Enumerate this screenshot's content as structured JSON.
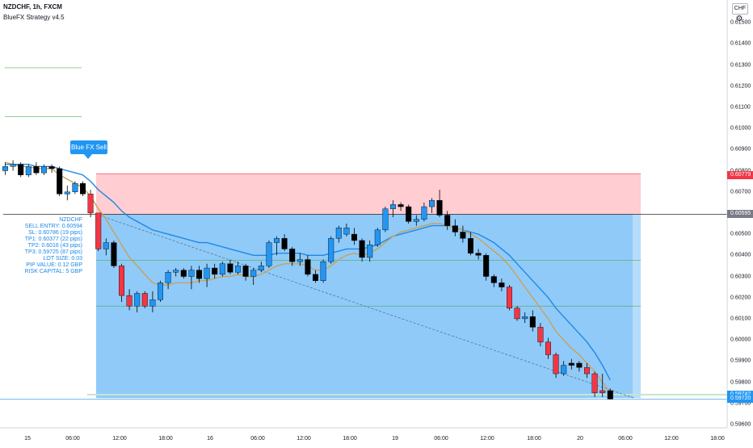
{
  "header": {
    "title": "NZDCHF, 1h, FXCM",
    "subtitle": "BlueFX Strategy v4.5"
  },
  "currency_badge": "CHF",
  "settings_icon": "gear-icon",
  "signal_label": "Blue FX Sell",
  "info": {
    "lines": [
      "NZDCHF",
      "SELL ENTRY: 0.60594",
      "SL: 0.60786 (19 pips)",
      "TP1: 0.60377 (22 pips)",
      "TP2: 0.6016 (43 pips)",
      "TP3: 0.59725 (87 pips)",
      "LOT SIZE: 0.03",
      "PIP VALUE: 0.12 GBP",
      "RISK CAPITAL: 5 GBP"
    ]
  },
  "price_axis": [
    "0.61500",
    "0.61400",
    "0.61300",
    "0.61200",
    "0.61100",
    "0.61000",
    "0.60900",
    "0.60800",
    "0.60700",
    "0.60600",
    "0.60500",
    "0.60400",
    "0.60300",
    "0.60200",
    "0.60100",
    "0.60000",
    "0.59900",
    "0.59800",
    "0.59700",
    "0.59600"
  ],
  "time_axis": [
    "15",
    "06:00",
    "12:00",
    "18:00",
    "16",
    "06:00",
    "12:00",
    "18:00",
    "19",
    "06:00",
    "12:00",
    "18:00",
    "20",
    "06:00",
    "12:00",
    "18:00"
  ],
  "price_tags": [
    {
      "text": "0.60779",
      "color": "#f23645"
    },
    {
      "text": "0.60595",
      "color": "#787b86"
    },
    {
      "text": "0.59742",
      "color": "#2196f3"
    },
    {
      "text": "0.59720",
      "color": "#2196f3"
    }
  ],
  "colors": {
    "bull": "#2196f3",
    "bear_red": "#f23645",
    "bear_black": "#000000",
    "sl_zone": "#ffcdd2",
    "tp_zone": "#90caf9",
    "ma_fast": "#c8a25a",
    "ma_slow": "#1e88e5"
  },
  "chart_data": {
    "type": "candlestick",
    "symbol": "NZDCHF",
    "timeframe": "1h",
    "ylim": [
      0.5955,
      0.6155
    ],
    "levels": {
      "sell_entry": 0.60594,
      "stop_loss": 0.60786,
      "tp1": 0.60377,
      "tp2": 0.6016,
      "tp3": 0.59725
    },
    "candles": [
      {
        "o": 0.608,
        "h": 0.6084,
        "l": 0.6078,
        "c": 0.6082,
        "k": "bull"
      },
      {
        "o": 0.6082,
        "h": 0.6085,
        "l": 0.608,
        "c": 0.6083,
        "k": "bull"
      },
      {
        "o": 0.6083,
        "h": 0.6084,
        "l": 0.6077,
        "c": 0.6078,
        "k": "black"
      },
      {
        "o": 0.6078,
        "h": 0.6083,
        "l": 0.6077,
        "c": 0.6082,
        "k": "bull"
      },
      {
        "o": 0.6082,
        "h": 0.6084,
        "l": 0.6078,
        "c": 0.6079,
        "k": "black"
      },
      {
        "o": 0.6079,
        "h": 0.6083,
        "l": 0.6078,
        "c": 0.6082,
        "k": "bull"
      },
      {
        "o": 0.6082,
        "h": 0.6083,
        "l": 0.6079,
        "c": 0.6081,
        "k": "black"
      },
      {
        "o": 0.6081,
        "h": 0.6082,
        "l": 0.6068,
        "c": 0.6069,
        "k": "black"
      },
      {
        "o": 0.6069,
        "h": 0.6073,
        "l": 0.6066,
        "c": 0.607,
        "k": "bull"
      },
      {
        "o": 0.607,
        "h": 0.6075,
        "l": 0.6069,
        "c": 0.6074,
        "k": "bull"
      },
      {
        "o": 0.6074,
        "h": 0.6075,
        "l": 0.6068,
        "c": 0.6069,
        "k": "black"
      },
      {
        "o": 0.6069,
        "h": 0.6071,
        "l": 0.6058,
        "c": 0.606,
        "k": "red"
      },
      {
        "o": 0.606,
        "h": 0.606,
        "l": 0.6042,
        "c": 0.6043,
        "k": "red"
      },
      {
        "o": 0.6043,
        "h": 0.6048,
        "l": 0.604,
        "c": 0.6046,
        "k": "bull"
      },
      {
        "o": 0.6046,
        "h": 0.6047,
        "l": 0.6034,
        "c": 0.6035,
        "k": "black"
      },
      {
        "o": 0.6035,
        "h": 0.6036,
        "l": 0.6018,
        "c": 0.6021,
        "k": "red"
      },
      {
        "o": 0.6021,
        "h": 0.6024,
        "l": 0.6014,
        "c": 0.6016,
        "k": "red"
      },
      {
        "o": 0.6016,
        "h": 0.6023,
        "l": 0.6013,
        "c": 0.6022,
        "k": "bull"
      },
      {
        "o": 0.6022,
        "h": 0.6023,
        "l": 0.6015,
        "c": 0.6016,
        "k": "red"
      },
      {
        "o": 0.6016,
        "h": 0.6023,
        "l": 0.6013,
        "c": 0.6019,
        "k": "bull"
      },
      {
        "o": 0.6019,
        "h": 0.6028,
        "l": 0.6018,
        "c": 0.6027,
        "k": "bull"
      },
      {
        "o": 0.6027,
        "h": 0.6033,
        "l": 0.6024,
        "c": 0.6032,
        "k": "bull"
      },
      {
        "o": 0.6032,
        "h": 0.6034,
        "l": 0.603,
        "c": 0.6033,
        "k": "bull"
      },
      {
        "o": 0.6033,
        "h": 0.6034,
        "l": 0.6029,
        "c": 0.603,
        "k": "black"
      },
      {
        "o": 0.603,
        "h": 0.6035,
        "l": 0.6024,
        "c": 0.6033,
        "k": "bull"
      },
      {
        "o": 0.6033,
        "h": 0.6035,
        "l": 0.6027,
        "c": 0.6029,
        "k": "black"
      },
      {
        "o": 0.6029,
        "h": 0.6036,
        "l": 0.6025,
        "c": 0.6034,
        "k": "bull"
      },
      {
        "o": 0.6034,
        "h": 0.6036,
        "l": 0.6029,
        "c": 0.6031,
        "k": "black"
      },
      {
        "o": 0.6031,
        "h": 0.6037,
        "l": 0.603,
        "c": 0.6036,
        "k": "bull"
      },
      {
        "o": 0.6036,
        "h": 0.6038,
        "l": 0.6031,
        "c": 0.6032,
        "k": "black"
      },
      {
        "o": 0.6032,
        "h": 0.6037,
        "l": 0.6031,
        "c": 0.6035,
        "k": "bull"
      },
      {
        "o": 0.6035,
        "h": 0.6036,
        "l": 0.6028,
        "c": 0.603,
        "k": "black"
      },
      {
        "o": 0.603,
        "h": 0.6034,
        "l": 0.6026,
        "c": 0.6033,
        "k": "bull"
      },
      {
        "o": 0.6033,
        "h": 0.6037,
        "l": 0.6032,
        "c": 0.6035,
        "k": "bull"
      },
      {
        "o": 0.6035,
        "h": 0.6047,
        "l": 0.6034,
        "c": 0.6046,
        "k": "bull"
      },
      {
        "o": 0.6046,
        "h": 0.6049,
        "l": 0.604,
        "c": 0.6048,
        "k": "bull"
      },
      {
        "o": 0.6048,
        "h": 0.605,
        "l": 0.6042,
        "c": 0.6043,
        "k": "black"
      },
      {
        "o": 0.6043,
        "h": 0.6044,
        "l": 0.6035,
        "c": 0.6037,
        "k": "black"
      },
      {
        "o": 0.6037,
        "h": 0.6041,
        "l": 0.6035,
        "c": 0.6038,
        "k": "bull"
      },
      {
        "o": 0.6038,
        "h": 0.604,
        "l": 0.603,
        "c": 0.6031,
        "k": "black"
      },
      {
        "o": 0.6031,
        "h": 0.6033,
        "l": 0.6027,
        "c": 0.6028,
        "k": "black"
      },
      {
        "o": 0.6028,
        "h": 0.6038,
        "l": 0.6027,
        "c": 0.6037,
        "k": "bull"
      },
      {
        "o": 0.6037,
        "h": 0.6049,
        "l": 0.6036,
        "c": 0.6048,
        "k": "bull"
      },
      {
        "o": 0.6048,
        "h": 0.6054,
        "l": 0.6046,
        "c": 0.6053,
        "k": "bull"
      },
      {
        "o": 0.6053,
        "h": 0.6055,
        "l": 0.6049,
        "c": 0.605,
        "k": "bull"
      },
      {
        "o": 0.605,
        "h": 0.6053,
        "l": 0.6045,
        "c": 0.6047,
        "k": "black"
      },
      {
        "o": 0.6047,
        "h": 0.6048,
        "l": 0.6037,
        "c": 0.6039,
        "k": "black"
      },
      {
        "o": 0.6039,
        "h": 0.6047,
        "l": 0.6037,
        "c": 0.6045,
        "k": "bull"
      },
      {
        "o": 0.6045,
        "h": 0.6053,
        "l": 0.6044,
        "c": 0.6052,
        "k": "bull"
      },
      {
        "o": 0.6052,
        "h": 0.6063,
        "l": 0.6051,
        "c": 0.6062,
        "k": "bull"
      },
      {
        "o": 0.6062,
        "h": 0.6066,
        "l": 0.6058,
        "c": 0.6064,
        "k": "bull"
      },
      {
        "o": 0.6064,
        "h": 0.6065,
        "l": 0.6061,
        "c": 0.6063,
        "k": "black"
      },
      {
        "o": 0.6063,
        "h": 0.6064,
        "l": 0.6055,
        "c": 0.6056,
        "k": "black"
      },
      {
        "o": 0.6056,
        "h": 0.6059,
        "l": 0.6054,
        "c": 0.6057,
        "k": "bull"
      },
      {
        "o": 0.6057,
        "h": 0.6065,
        "l": 0.6056,
        "c": 0.6063,
        "k": "bull"
      },
      {
        "o": 0.6063,
        "h": 0.6067,
        "l": 0.606,
        "c": 0.6066,
        "k": "bull"
      },
      {
        "o": 0.6066,
        "h": 0.6071,
        "l": 0.6058,
        "c": 0.6059,
        "k": "black"
      },
      {
        "o": 0.6059,
        "h": 0.6061,
        "l": 0.6052,
        "c": 0.6054,
        "k": "black"
      },
      {
        "o": 0.6054,
        "h": 0.6057,
        "l": 0.6049,
        "c": 0.6051,
        "k": "black"
      },
      {
        "o": 0.6051,
        "h": 0.6054,
        "l": 0.6046,
        "c": 0.6048,
        "k": "black"
      },
      {
        "o": 0.6048,
        "h": 0.6051,
        "l": 0.604,
        "c": 0.6041,
        "k": "black"
      },
      {
        "o": 0.6041,
        "h": 0.6043,
        "l": 0.6038,
        "c": 0.604,
        "k": "black"
      },
      {
        "o": 0.604,
        "h": 0.6041,
        "l": 0.6028,
        "c": 0.603,
        "k": "black"
      },
      {
        "o": 0.603,
        "h": 0.6031,
        "l": 0.6025,
        "c": 0.6027,
        "k": "black"
      },
      {
        "o": 0.6027,
        "h": 0.6029,
        "l": 0.6023,
        "c": 0.6025,
        "k": "black"
      },
      {
        "o": 0.6025,
        "h": 0.6026,
        "l": 0.6014,
        "c": 0.6015,
        "k": "red"
      },
      {
        "o": 0.6015,
        "h": 0.6016,
        "l": 0.6009,
        "c": 0.601,
        "k": "red"
      },
      {
        "o": 0.601,
        "h": 0.6013,
        "l": 0.6008,
        "c": 0.6011,
        "k": "bull"
      },
      {
        "o": 0.6011,
        "h": 0.6014,
        "l": 0.6004,
        "c": 0.6006,
        "k": "black"
      },
      {
        "o": 0.6006,
        "h": 0.6008,
        "l": 0.5997,
        "c": 0.5999,
        "k": "red"
      },
      {
        "o": 0.5999,
        "h": 0.6001,
        "l": 0.5991,
        "c": 0.5993,
        "k": "red"
      },
      {
        "o": 0.5993,
        "h": 0.5994,
        "l": 0.5982,
        "c": 0.5984,
        "k": "red"
      },
      {
        "o": 0.5984,
        "h": 0.599,
        "l": 0.5983,
        "c": 0.5988,
        "k": "bull"
      },
      {
        "o": 0.5988,
        "h": 0.5991,
        "l": 0.5986,
        "c": 0.5989,
        "k": "black"
      },
      {
        "o": 0.5989,
        "h": 0.599,
        "l": 0.5985,
        "c": 0.5987,
        "k": "black"
      },
      {
        "o": 0.5987,
        "h": 0.5989,
        "l": 0.5982,
        "c": 0.5984,
        "k": "red"
      },
      {
        "o": 0.5984,
        "h": 0.5985,
        "l": 0.5973,
        "c": 0.5975,
        "k": "red"
      },
      {
        "o": 0.5975,
        "h": 0.5984,
        "l": 0.5973,
        "c": 0.5976,
        "k": "red"
      },
      {
        "o": 0.5976,
        "h": 0.5977,
        "l": 0.5972,
        "c": 0.5972,
        "k": "black"
      }
    ],
    "ma_fast": [
      0.6084,
      0.6083,
      0.6082,
      0.6082,
      0.6081,
      0.6081,
      0.6081,
      0.6078,
      0.6076,
      0.6074,
      0.6072,
      0.6068,
      0.6062,
      0.6057,
      0.6051,
      0.6045,
      0.6039,
      0.6035,
      0.6031,
      0.6027,
      0.6026,
      0.6026,
      0.6027,
      0.6027,
      0.6027,
      0.6028,
      0.6028,
      0.6029,
      0.603,
      0.603,
      0.6031,
      0.603,
      0.603,
      0.6031,
      0.6033,
      0.6035,
      0.6036,
      0.6036,
      0.6036,
      0.6035,
      0.6033,
      0.6033,
      0.6035,
      0.6038,
      0.604,
      0.6041,
      0.604,
      0.6041,
      0.6043,
      0.6046,
      0.6049,
      0.6051,
      0.6052,
      0.6053,
      0.6054,
      0.6055,
      0.6055,
      0.6054,
      0.6053,
      0.6052,
      0.605,
      0.6048,
      0.6045,
      0.6042,
      0.6039,
      0.6035,
      0.603,
      0.6025,
      0.602,
      0.6015,
      0.601,
      0.6004,
      0.6,
      0.5996,
      0.5993,
      0.5989,
      0.5985,
      0.598,
      0.5975
    ],
    "ma_slow": [
      0.6083,
      0.6083,
      0.6083,
      0.6083,
      0.6082,
      0.6082,
      0.6082,
      0.6081,
      0.608,
      0.6079,
      0.6078,
      0.6075,
      0.6071,
      0.6068,
      0.6065,
      0.6061,
      0.6058,
      0.6056,
      0.6054,
      0.6052,
      0.6051,
      0.605,
      0.6049,
      0.6048,
      0.6047,
      0.6046,
      0.6046,
      0.6045,
      0.6044,
      0.6043,
      0.6042,
      0.6041,
      0.604,
      0.604,
      0.604,
      0.6041,
      0.6041,
      0.6041,
      0.6041,
      0.604,
      0.604,
      0.604,
      0.6041,
      0.6042,
      0.6043,
      0.6043,
      0.6043,
      0.6044,
      0.6045,
      0.6047,
      0.6049,
      0.605,
      0.6051,
      0.6052,
      0.6053,
      0.6054,
      0.6054,
      0.6054,
      0.6053,
      0.6052,
      0.6051,
      0.605,
      0.6048,
      0.6046,
      0.6043,
      0.604,
      0.6036,
      0.6032,
      0.6028,
      0.6024,
      0.602,
      0.6015,
      0.6011,
      0.6007,
      0.6003,
      0.5999,
      0.5994,
      0.5988,
      0.5981
    ]
  }
}
